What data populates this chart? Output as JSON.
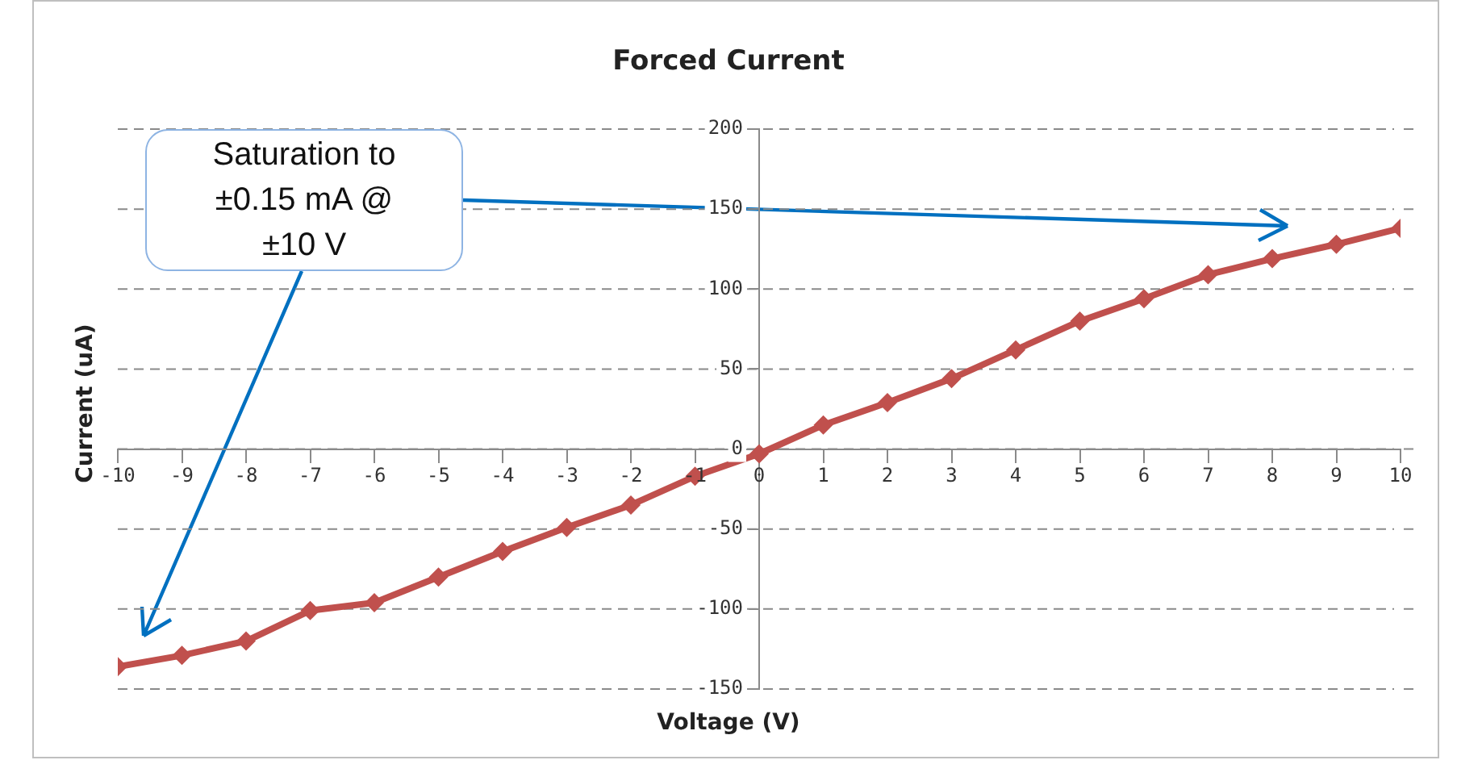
{
  "chart_data": {
    "type": "line",
    "title": "Forced Current",
    "xlabel": "Voltage (V)",
    "ylabel": "Current (uA)",
    "x": [
      -10,
      -9,
      -8,
      -7,
      -6,
      -5,
      -4,
      -3,
      -2,
      -1,
      0,
      1,
      2,
      3,
      4,
      5,
      6,
      7,
      8,
      9,
      10
    ],
    "series": [
      {
        "color": "#c0504d",
        "values": [
          -136,
          -129,
          -120,
          -101,
          -96,
          -80,
          -64,
          -49,
          -35,
          -17,
          -3,
          15,
          29,
          44,
          62,
          80,
          94,
          109,
          119,
          128,
          138
        ]
      }
    ],
    "xlim": [
      -10,
      10
    ],
    "xticks": [
      -10,
      -9,
      -8,
      -7,
      -6,
      -5,
      -4,
      -3,
      -2,
      -1,
      0,
      1,
      2,
      3,
      4,
      5,
      6,
      7,
      8,
      9,
      10
    ],
    "ylim": [
      -150,
      200
    ],
    "yticks": [
      -150,
      -100,
      -50,
      0,
      50,
      100,
      150,
      200
    ],
    "grid": "y",
    "legend": false,
    "marker": "diamond",
    "line_style": "solid",
    "annotations": [
      "Saturation to ±0.15 mA @ ±10 V"
    ]
  }
}
